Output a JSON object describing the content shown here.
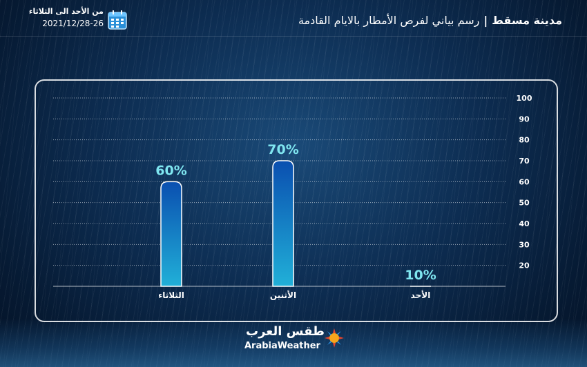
{
  "header": {
    "city": "مدينة مسقط",
    "separator": "|",
    "subtitle": "رسم بياني لفرص الأمطار بالايام القادمة",
    "date_range": "من الأحد  الى الثلاثاء",
    "date_value": "2021/12/28-26"
  },
  "logo": {
    "arabic": "طقس العرب",
    "english": "ArabiaWeather"
  },
  "colors": {
    "bar_top": "#0a4fb0",
    "bar_bottom": "#21b0d8",
    "label": "#7fe6f0"
  },
  "chart_data": {
    "type": "bar",
    "categories": [
      "الثلاثاء",
      "الأثنين",
      "الأحد"
    ],
    "values": [
      60,
      70,
      10
    ],
    "value_labels": [
      "60%",
      "70%",
      "10%"
    ],
    "y_ticks": [
      20,
      30,
      40,
      50,
      60,
      70,
      80,
      90,
      100
    ],
    "ylim": [
      10,
      100
    ],
    "y_axis_side": "right",
    "grid": true
  }
}
